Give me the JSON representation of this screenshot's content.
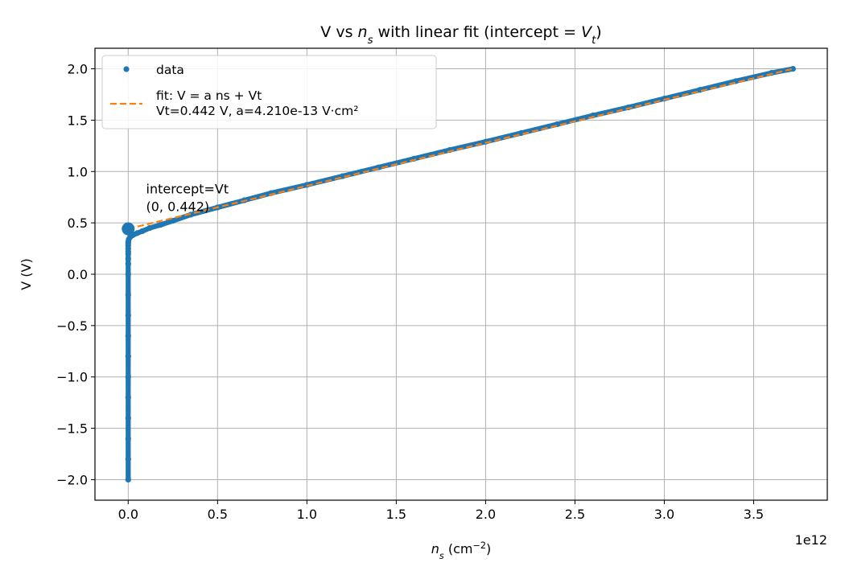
{
  "chart_data": {
    "type": "scatter",
    "title_parts": [
      {
        "text": "V vs ",
        "italic": false
      },
      {
        "text": "n",
        "italic": true
      },
      {
        "text": "s",
        "italic": true,
        "sub": true
      },
      {
        "text": " with linear fit (intercept = ",
        "italic": false
      },
      {
        "text": "V",
        "italic": true
      },
      {
        "text": "t",
        "italic": true,
        "sub": true
      },
      {
        "text": ")",
        "italic": false
      }
    ],
    "xlabel_parts": [
      {
        "text": "n",
        "italic": true
      },
      {
        "text": "s",
        "italic": true,
        "sub": true
      },
      {
        "text": " (cm",
        "italic": false
      },
      {
        "text": "−2",
        "italic": false,
        "sup": true
      },
      {
        "text": ")",
        "italic": false
      }
    ],
    "ylabel": "V (V)",
    "x_offset_label": "1e12",
    "x_scale": 1000000000000.0,
    "xlim": [
      -0.186,
      3.912
    ],
    "ylim": [
      -2.2,
      2.2
    ],
    "xticks": [
      0.0,
      0.5,
      1.0,
      1.5,
      2.0,
      2.5,
      3.0,
      3.5
    ],
    "xtick_labels": [
      "0.0",
      "0.5",
      "1.0",
      "1.5",
      "2.0",
      "2.5",
      "3.0",
      "3.5"
    ],
    "yticks": [
      -2.0,
      -1.5,
      -1.0,
      -0.5,
      0.0,
      0.5,
      1.0,
      1.5,
      2.0
    ],
    "ytick_labels": [
      "−2.0",
      "−1.5",
      "−1.0",
      "−0.5",
      "0.0",
      "0.5",
      "1.0",
      "1.5",
      "2.0"
    ],
    "grid": true,
    "legend_position": "top-left",
    "series": [
      {
        "name": "data",
        "kind": "points",
        "color": "#1f77b4",
        "x": [
          0,
          0,
          0,
          0,
          0,
          0,
          0,
          0,
          0,
          0,
          0,
          0,
          0,
          0,
          0,
          0,
          0,
          0,
          0.001,
          0.003,
          0.01,
          0.025,
          0.05,
          0.08,
          0.12,
          0.18,
          0.25,
          0.35,
          0.5,
          0.65,
          0.8,
          1.0,
          1.2,
          1.4,
          1.6,
          1.8,
          2.0,
          2.2,
          2.4,
          2.6,
          2.8,
          3.0,
          3.2,
          3.4,
          3.6,
          3.72
        ],
        "y": [
          -2.0,
          -1.8,
          -1.6,
          -1.4,
          -1.2,
          -1.0,
          -0.8,
          -0.6,
          -0.4,
          -0.2,
          0.0,
          0.1,
          0.15,
          0.2,
          0.22,
          0.25,
          0.28,
          0.3,
          0.32,
          0.34,
          0.36,
          0.38,
          0.4,
          0.42,
          0.45,
          0.48,
          0.52,
          0.58,
          0.65,
          0.72,
          0.79,
          0.87,
          0.955,
          1.04,
          1.125,
          1.21,
          1.29,
          1.375,
          1.46,
          1.545,
          1.625,
          1.71,
          1.795,
          1.88,
          1.96,
          2.0
        ]
      },
      {
        "name": "fit: V = a ns + Vt\nVt=0.442 V, a=4.210e-13 V·cm²",
        "kind": "dashed-line",
        "color": "#ff7f0e",
        "x": [
          0.0,
          3.72
        ],
        "y": [
          0.442,
          2.0
        ]
      }
    ],
    "highlight_point": {
      "x": 0,
      "y": 0.442,
      "color": "#1f77b4"
    },
    "annotations": [
      {
        "lines": [
          "intercept=Vt",
          "(0, 0.442)"
        ],
        "x": 0.1,
        "y": 0.442
      }
    ]
  }
}
